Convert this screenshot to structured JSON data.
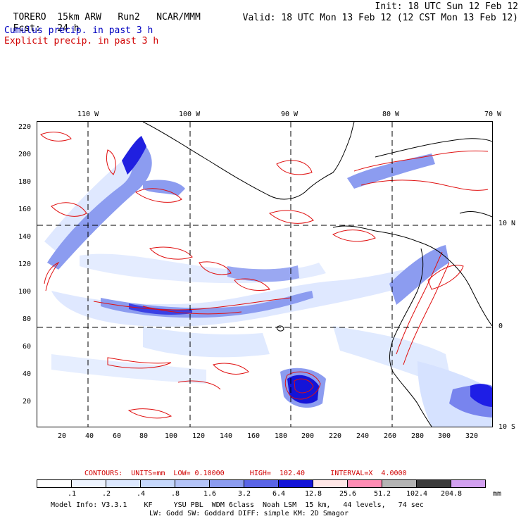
{
  "header": {
    "title": "TORERO",
    "model": "15km ARW",
    "run": "Run2",
    "org": "NCAR/MMM",
    "init": "Init: 18 UTC Sun 12 Feb 12",
    "fcst_label": "Fcst:",
    "fcst_value": "24 h",
    "valid": "Valid: 18 UTC Mon 13 Feb 12 (12 CST Mon 13 Feb 12)",
    "line_cumulus": "Cumulus precip. in past 3 h",
    "line_explicit": "Explicit precip. in past 3 h"
  },
  "map": {
    "top_lon_labels": [
      "110 W",
      "100 W",
      "90 W",
      "80 W",
      "70 W"
    ],
    "right_lat_labels": [
      "10 N",
      "0",
      "10 S"
    ],
    "y_tick_labels": [
      "220",
      "200",
      "180",
      "160",
      "140",
      "120",
      "100",
      "80",
      "60",
      "40",
      "20"
    ],
    "x_tick_labels": [
      "20",
      "40",
      "60",
      "80",
      "100",
      "120",
      "140",
      "160",
      "180",
      "200",
      "220",
      "240",
      "260",
      "280",
      "300",
      "320"
    ],
    "colors": {
      "cumulus": "#1e1ee6",
      "cumulus_light": "#b4c8ff",
      "explicit": "#e01010",
      "coast": "#000000",
      "grid": "#000000"
    }
  },
  "contours": {
    "text": "CONTOURS:  UNITS=mm  LOW= 0.10000      HIGH=  102.40      INTERVAL=X  4.0000"
  },
  "colorbar": {
    "colors": [
      "#ffffff",
      "#eef4ff",
      "#dce8ff",
      "#c6d8fc",
      "#b4c4f8",
      "#8c9cf0",
      "#5a64e6",
      "#1414d8",
      "#ffe6e6",
      "#ff8cb4",
      "#b4b4b4",
      "#3c3c3c",
      "#d2a0f0"
    ],
    "labels": [
      ".1",
      ".2",
      ".4",
      ".8",
      "1.6",
      "3.2",
      "6.4",
      "12.8",
      "25.6",
      "51.2",
      "102.4",
      "204.8"
    ],
    "units": "mm"
  },
  "footer": {
    "line1": "Model Info: V3.3.1    KF     YSU PBL  WDM 6class  Noah LSM  15 km,   44 levels,   74 sec",
    "line2": "LW: Godd SW: Goddard DIFF: simple KM: 2D Smagor"
  }
}
